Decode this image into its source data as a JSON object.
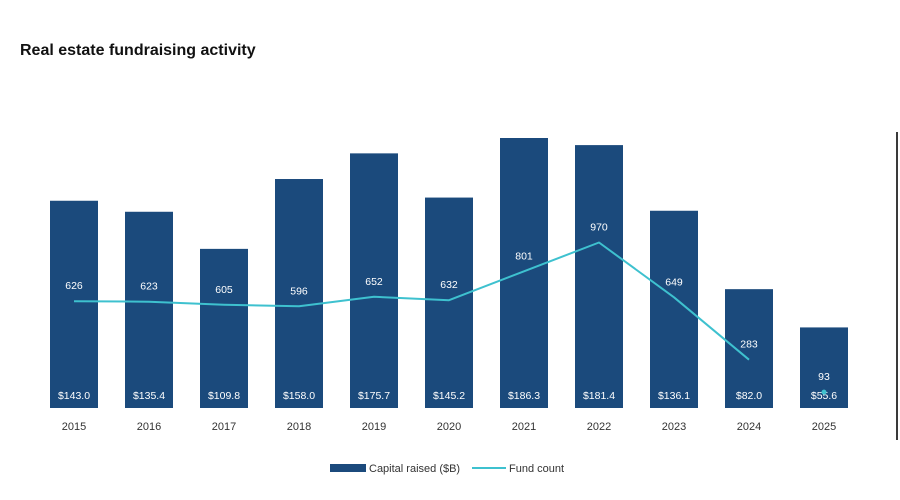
{
  "title": "Real estate fundraising activity",
  "colors": {
    "bar": "#1b4a7c",
    "line": "#3ec1cf",
    "bar_label": "#ffffff",
    "count_label_on_bar": "#ffffff",
    "count_label_off_bar": "#333333",
    "axis_text": "#333333"
  },
  "chart_data": {
    "type": "bar",
    "categories": [
      "2015",
      "2016",
      "2017",
      "2018",
      "2019",
      "2020",
      "2021",
      "2022",
      "2023",
      "2024",
      "2025"
    ],
    "series": [
      {
        "name": "Capital raised ($B)",
        "type": "bar",
        "values": [
          143.0,
          135.4,
          109.8,
          158.0,
          175.7,
          145.2,
          186.3,
          181.4,
          136.1,
          82.0,
          55.6
        ],
        "labels": [
          "$143.0",
          "$135.4",
          "$109.8",
          "$158.0",
          "$175.7",
          "$145.2",
          "$186.3",
          "$181.4",
          "$136.1",
          "$82.0",
          "$55.6"
        ]
      },
      {
        "name": "Fund count",
        "type": "line",
        "values": [
          626,
          623,
          605,
          596,
          652,
          632,
          801,
          970,
          649,
          283,
          93
        ],
        "labels": [
          "626",
          "623",
          "605",
          "596",
          "652",
          "632",
          "801",
          "970",
          "649",
          "283",
          "93"
        ],
        "line_through": [
          "2015",
          "2016",
          "2017",
          "2018",
          "2019",
          "2020",
          "2021",
          "2022",
          "2023",
          "2024"
        ],
        "marker_only": [
          "2025"
        ]
      }
    ],
    "legend": [
      "Capital raised ($B)",
      "Fund count"
    ],
    "legend_position": "bottom-center",
    "grid": false,
    "ylim_bars": [
      0,
      186.3
    ],
    "ylim_line": [
      0,
      1000
    ]
  }
}
